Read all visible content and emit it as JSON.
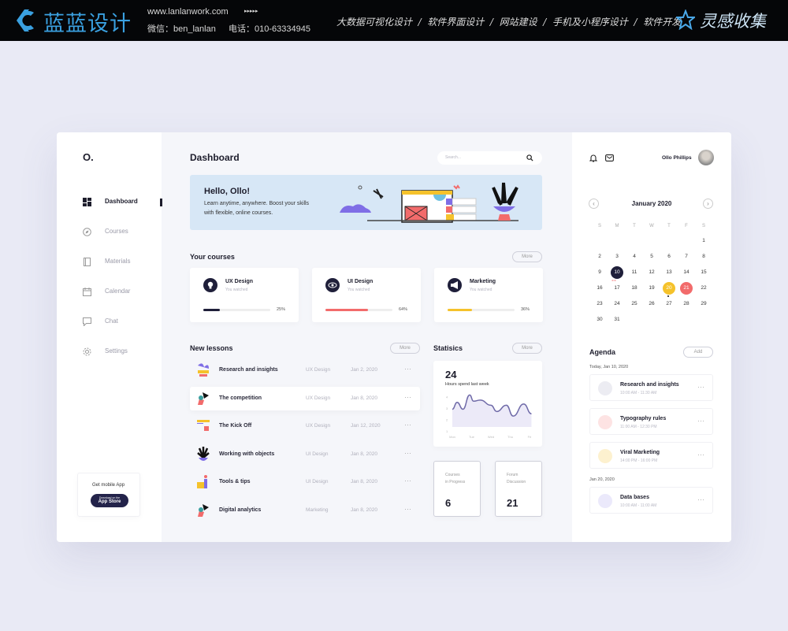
{
  "topbar": {
    "brand": "蓝蓝设计",
    "url": "www.lanlanwork.com",
    "arrows": "▸▸▸▸▸",
    "wechat": "微信：ben_lanlan",
    "phone": "电话：010-63334945",
    "services": "大数据可视化设计  /  软件界面设计  /  网站建设  /  手机及小程序设计  /  软件开发",
    "collect": "灵感收集"
  },
  "sidebar": {
    "logo": "O.",
    "items": [
      {
        "label": "Dashboard",
        "icon": "grid-icon",
        "active": true
      },
      {
        "label": "Courses",
        "icon": "compass-icon"
      },
      {
        "label": "Materials",
        "icon": "book-icon"
      },
      {
        "label": "Calendar",
        "icon": "calendar-icon"
      },
      {
        "label": "Chat",
        "icon": "chat-icon"
      },
      {
        "label": "Settings",
        "icon": "gear-icon"
      }
    ],
    "mobile": {
      "title": "Get mobile App",
      "store_small": "Download on the",
      "store": "App Store"
    }
  },
  "header": {
    "title": "Dashboard",
    "search_placeholder": "Search..."
  },
  "banner": {
    "title": "Hello, Ollo!",
    "text1": "Learn anytime, anywhere. Boost your skills",
    "text2": "with flexible, online courses."
  },
  "courses": {
    "title": "Your courses",
    "more": "More",
    "items": [
      {
        "name": "UX Design",
        "sub": "You watched",
        "progress": 25,
        "label": "25%",
        "color": "#1f1f3a"
      },
      {
        "name": "UI Design",
        "sub": "You watched",
        "progress": 64,
        "label": "64%",
        "color": "#f26b6b"
      },
      {
        "name": "Marketing",
        "sub": "You watched",
        "progress": 36,
        "label": "36%",
        "color": "#f5c22b"
      }
    ]
  },
  "lessons": {
    "title": "New lessons",
    "more": "More",
    "items": [
      {
        "title": "Research and insights",
        "category": "UX Design",
        "date": "Jan 2, 2020"
      },
      {
        "title": "The competition",
        "category": "UX Design",
        "date": "Jan 8, 2020"
      },
      {
        "title": "The Kick Off",
        "category": "UX Design",
        "date": "Jan 12, 2020"
      },
      {
        "title": "Working with objects",
        "category": "UI Design",
        "date": "Jan 8, 2020"
      },
      {
        "title": "Tools & tips",
        "category": "UI Design",
        "date": "Jan 8, 2020"
      },
      {
        "title": "Digital analytics",
        "category": "Marketing",
        "date": "Jan 8, 2020"
      }
    ]
  },
  "statistics": {
    "title": "Statisics",
    "more": "More",
    "hours": "24",
    "hours_label": "Hours spend last week",
    "boxes": [
      {
        "label1": "Courses",
        "label2": "in Progress",
        "value": "6"
      },
      {
        "label1": "Forum",
        "label2": "Discussion",
        "value": "21"
      }
    ]
  },
  "chart_data": {
    "type": "line",
    "categories": [
      "Mon",
      "Tue",
      "Wed",
      "Thu",
      "Fri"
    ],
    "yticks": [
      1,
      2,
      3,
      4
    ],
    "ylim": [
      1,
      4
    ],
    "points": [
      [
        0,
        2.9
      ],
      [
        0.25,
        3.5
      ],
      [
        0.55,
        2.9
      ],
      [
        0.9,
        4.15
      ],
      [
        1.1,
        3.6
      ],
      [
        1.45,
        3.7
      ],
      [
        2,
        3.25
      ],
      [
        2.3,
        2.7
      ],
      [
        2.8,
        3.25
      ],
      [
        3.15,
        2.3
      ],
      [
        3.7,
        3.35
      ],
      [
        4.1,
        2.5
      ]
    ],
    "color": "#6f6aa8"
  },
  "user": {
    "name": "Ollo Phillips"
  },
  "calendar": {
    "month": "January 2020",
    "weekdays": [
      "S",
      "M",
      "T",
      "W",
      "T",
      "F",
      "S"
    ],
    "first_col": 6,
    "days": 31,
    "selected": 10,
    "highlight_yellow": 20,
    "highlight_red": 21
  },
  "agenda": {
    "title": "Agenda",
    "add": "Add",
    "groups": [
      {
        "date": "Today, Jan 10, 2020",
        "items": [
          {
            "title": "Research and insights",
            "time": "10:00 AM - 11:30 AM",
            "color": "#ececf2",
            "icon": "bulb-icon"
          },
          {
            "title": "Typography rules",
            "time": "11:00 AM - 12:30 PM",
            "color": "#fde3e3",
            "icon": "eye-icon"
          },
          {
            "title": "Viral Marketing",
            "time": "14:00 PM - 16:00 PM",
            "color": "#fdf1cf",
            "icon": "megaphone-icon"
          }
        ]
      },
      {
        "date": "Jan 20, 2020",
        "items": [
          {
            "title": "Data bases",
            "time": "10:00 AM - 11:00 AM",
            "color": "#ebe9fb",
            "icon": "gear-icon"
          }
        ]
      }
    ]
  }
}
